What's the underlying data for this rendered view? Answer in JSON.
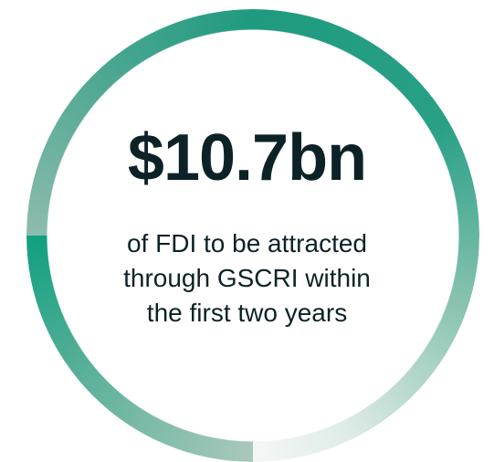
{
  "headline": "$10.7bn",
  "description": [
    "of FDI to be attracted",
    "through GSCRI within",
    "the first two years"
  ]
}
